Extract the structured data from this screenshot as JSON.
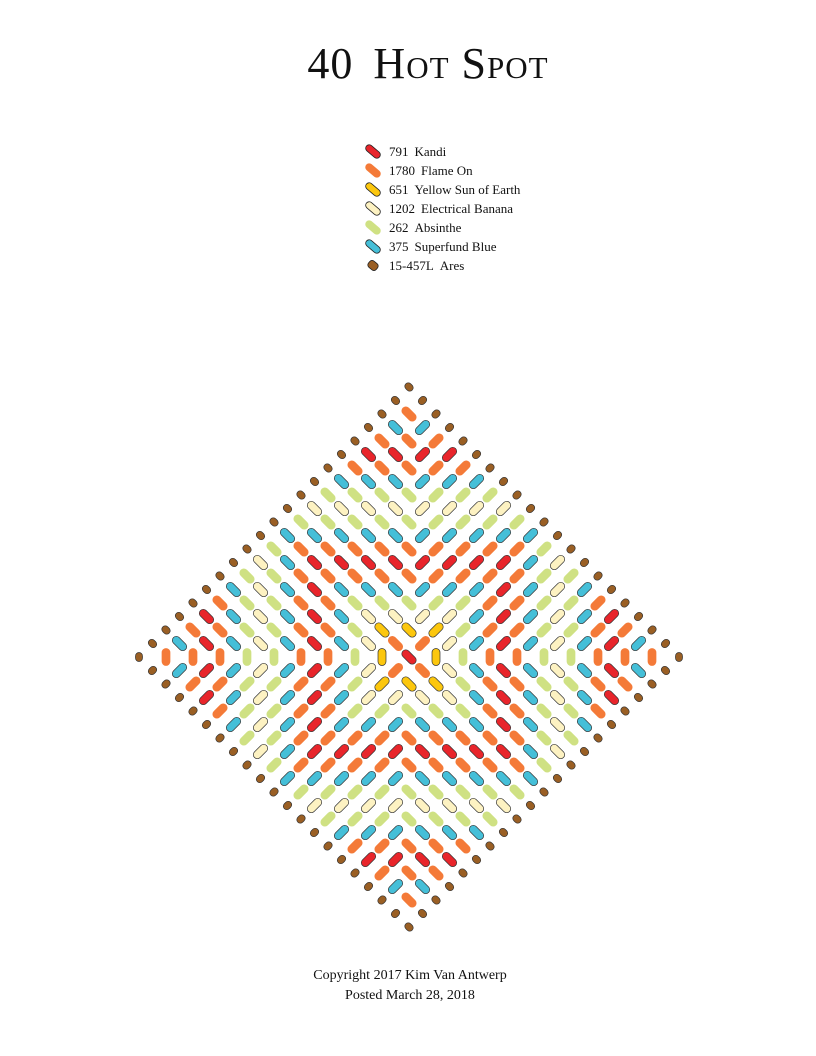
{
  "title": {
    "number": "40",
    "name": "Hot Spot"
  },
  "legend": [
    {
      "code": "791",
      "name": "Kandi",
      "color": "#e8252b",
      "shape": "long"
    },
    {
      "code": "1780",
      "name": "Flame On",
      "color": "#f47a38",
      "shape": "long"
    },
    {
      "code": "651",
      "name": "Yellow Sun of Earth",
      "color": "#fcc70e",
      "shape": "long"
    },
    {
      "code": "1202",
      "name": "Electrical Banana",
      "color": "#fdf2c2",
      "shape": "long"
    },
    {
      "code": "262",
      "name": "Absinthe",
      "color": "#cfe183",
      "shape": "long"
    },
    {
      "code": "375",
      "name": "Superfund Blue",
      "color": "#45bfd8",
      "shape": "long"
    },
    {
      "code": "15-457L",
      "name": "Ares",
      "color": "#9a5f24",
      "shape": "short"
    }
  ],
  "footer": {
    "copyright": "Copyright 2017 Kim Van Antwerp",
    "posted": "Posted March 28, 2018"
  }
}
